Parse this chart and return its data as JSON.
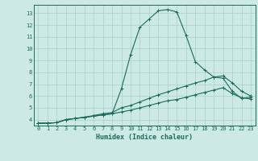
{
  "title": "",
  "xlabel": "Humidex (Indice chaleur)",
  "ylabel": "",
  "bg_color": "#cce9e5",
  "line_color": "#1a6b5a",
  "grid_color": "#add4ce",
  "xlim": [
    -0.5,
    23.5
  ],
  "ylim": [
    3.5,
    13.7
  ],
  "xticks": [
    0,
    1,
    2,
    3,
    4,
    5,
    6,
    7,
    8,
    9,
    10,
    11,
    12,
    13,
    14,
    15,
    16,
    17,
    18,
    19,
    20,
    21,
    22,
    23
  ],
  "yticks": [
    4,
    5,
    6,
    7,
    8,
    9,
    10,
    11,
    12,
    13
  ],
  "line1_x": [
    0,
    1,
    2,
    3,
    4,
    5,
    6,
    7,
    8,
    9,
    10,
    11,
    12,
    13,
    14,
    15,
    16,
    17,
    18,
    19,
    20,
    21,
    22,
    23
  ],
  "line1_y": [
    3.7,
    3.7,
    3.75,
    4.0,
    4.1,
    4.2,
    4.3,
    4.4,
    4.5,
    6.6,
    9.5,
    11.8,
    12.5,
    13.2,
    13.3,
    13.1,
    11.1,
    8.9,
    8.2,
    7.6,
    7.5,
    6.4,
    5.8,
    5.9
  ],
  "line2_x": [
    0,
    1,
    2,
    3,
    4,
    5,
    6,
    7,
    8,
    9,
    10,
    11,
    12,
    13,
    14,
    15,
    16,
    17,
    18,
    19,
    20,
    21,
    22,
    23
  ],
  "line2_y": [
    3.7,
    3.7,
    3.75,
    4.0,
    4.1,
    4.2,
    4.35,
    4.5,
    4.6,
    5.0,
    5.2,
    5.5,
    5.8,
    6.1,
    6.35,
    6.6,
    6.85,
    7.1,
    7.3,
    7.6,
    7.7,
    7.1,
    6.4,
    6.0
  ],
  "line3_x": [
    0,
    1,
    2,
    3,
    4,
    5,
    6,
    7,
    8,
    9,
    10,
    11,
    12,
    13,
    14,
    15,
    16,
    17,
    18,
    19,
    20,
    21,
    22,
    23
  ],
  "line3_y": [
    3.7,
    3.7,
    3.75,
    4.0,
    4.1,
    4.2,
    4.3,
    4.4,
    4.5,
    4.65,
    4.8,
    5.0,
    5.2,
    5.4,
    5.6,
    5.7,
    5.9,
    6.1,
    6.3,
    6.5,
    6.7,
    6.2,
    5.85,
    5.75
  ]
}
